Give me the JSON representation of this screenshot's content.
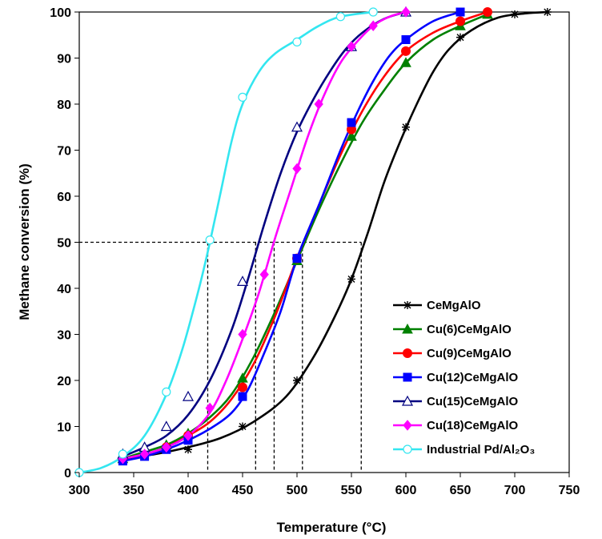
{
  "chart_data": {
    "type": "line",
    "xlabel": "Temperature (°C)",
    "ylabel": "Methane conversion (%)",
    "xlim": [
      300,
      750
    ],
    "ylim": [
      0,
      100
    ],
    "xticks": [
      300,
      350,
      400,
      450,
      500,
      550,
      600,
      650,
      700,
      750
    ],
    "yticks": [
      0,
      10,
      20,
      30,
      40,
      50,
      60,
      70,
      80,
      90,
      100
    ],
    "grid": false,
    "legend_position": "bottom-right",
    "reference_line": {
      "y": 50,
      "x_values": [
        418,
        462,
        479,
        505,
        559
      ],
      "style": "dashed"
    },
    "series": [
      {
        "name": "CeMgAlO",
        "color": "#000000",
        "marker": "star",
        "points": [
          [
            400,
            5
          ],
          [
            450,
            10
          ],
          [
            500,
            20
          ],
          [
            550,
            42
          ],
          [
            600,
            75
          ],
          [
            650,
            94.5
          ],
          [
            700,
            99.5
          ],
          [
            730,
            100
          ]
        ],
        "curve": [
          [
            340,
            3
          ],
          [
            370,
            4
          ],
          [
            400,
            5.5
          ],
          [
            430,
            7.5
          ],
          [
            460,
            11
          ],
          [
            490,
            16.5
          ],
          [
            515,
            25
          ],
          [
            535,
            34
          ],
          [
            550,
            42
          ],
          [
            565,
            52
          ],
          [
            580,
            63
          ],
          [
            595,
            72
          ],
          [
            610,
            80
          ],
          [
            625,
            87
          ],
          [
            640,
            92
          ],
          [
            660,
            96
          ],
          [
            685,
            98.8
          ],
          [
            710,
            99.7
          ],
          [
            730,
            100
          ]
        ]
      },
      {
        "name": "Cu(6)CeMgAlO",
        "color": "#008000",
        "marker": "triangle",
        "points": [
          [
            340,
            3
          ],
          [
            380,
            6
          ],
          [
            400,
            8.5
          ],
          [
            450,
            20.5
          ],
          [
            500,
            46
          ],
          [
            550,
            73
          ],
          [
            600,
            89
          ],
          [
            650,
            97
          ],
          [
            675,
            99.5
          ]
        ],
        "curve": [
          [
            340,
            3
          ],
          [
            360,
            4.5
          ],
          [
            380,
            6
          ],
          [
            400,
            8.5
          ],
          [
            420,
            12
          ],
          [
            440,
            17
          ],
          [
            460,
            25
          ],
          [
            480,
            35
          ],
          [
            500,
            46
          ],
          [
            520,
            57
          ],
          [
            540,
            67
          ],
          [
            560,
            76
          ],
          [
            580,
            83
          ],
          [
            600,
            89
          ],
          [
            625,
            94
          ],
          [
            650,
            97
          ],
          [
            675,
            99.5
          ]
        ]
      },
      {
        "name": "Cu(9)CeMgAlO",
        "color": "#ff0000",
        "marker": "circle",
        "points": [
          [
            340,
            3
          ],
          [
            380,
            5.5
          ],
          [
            400,
            8
          ],
          [
            450,
            18.5
          ],
          [
            500,
            46.5
          ],
          [
            550,
            74.5
          ],
          [
            600,
            91.5
          ],
          [
            650,
            98
          ],
          [
            675,
            100
          ]
        ],
        "curve": [
          [
            340,
            3
          ],
          [
            360,
            4
          ],
          [
            380,
            5.5
          ],
          [
            400,
            8
          ],
          [
            420,
            11
          ],
          [
            440,
            16
          ],
          [
            460,
            23.5
          ],
          [
            480,
            34
          ],
          [
            500,
            46.5
          ],
          [
            520,
            58
          ],
          [
            540,
            69
          ],
          [
            560,
            78.5
          ],
          [
            580,
            86
          ],
          [
            600,
            91.5
          ],
          [
            625,
            95.5
          ],
          [
            650,
            98
          ],
          [
            675,
            100
          ]
        ]
      },
      {
        "name": "Cu(12)CeMgAlO",
        "color": "#0000ff",
        "marker": "square",
        "points": [
          [
            340,
            2.5
          ],
          [
            360,
            3.5
          ],
          [
            380,
            5
          ],
          [
            400,
            7
          ],
          [
            450,
            16.5
          ],
          [
            500,
            46.5
          ],
          [
            550,
            76
          ],
          [
            600,
            94
          ],
          [
            650,
            100
          ]
        ],
        "curve": [
          [
            340,
            2.5
          ],
          [
            360,
            3.5
          ],
          [
            380,
            5
          ],
          [
            400,
            7
          ],
          [
            420,
            9.5
          ],
          [
            440,
            13
          ],
          [
            455,
            18
          ],
          [
            470,
            26
          ],
          [
            485,
            35
          ],
          [
            500,
            46.5
          ],
          [
            520,
            58
          ],
          [
            540,
            70
          ],
          [
            555,
            78
          ],
          [
            570,
            85
          ],
          [
            585,
            90.5
          ],
          [
            600,
            94
          ],
          [
            625,
            98
          ],
          [
            650,
            100
          ]
        ]
      },
      {
        "name": "Cu(15)CeMgAlO",
        "color": "#000080",
        "marker": "open-triangle",
        "points": [
          [
            340,
            4
          ],
          [
            360,
            5.5
          ],
          [
            380,
            10
          ],
          [
            400,
            16.5
          ],
          [
            450,
            41.5
          ],
          [
            500,
            75
          ],
          [
            550,
            92.5
          ],
          [
            600,
            100
          ]
        ],
        "curve": [
          [
            340,
            3.5
          ],
          [
            360,
            5.5
          ],
          [
            380,
            8
          ],
          [
            400,
            12.5
          ],
          [
            420,
            20
          ],
          [
            440,
            31
          ],
          [
            455,
            42
          ],
          [
            470,
            54
          ],
          [
            485,
            65
          ],
          [
            500,
            74
          ],
          [
            515,
            81
          ],
          [
            530,
            87
          ],
          [
            545,
            92
          ],
          [
            560,
            95.5
          ],
          [
            580,
            98.5
          ],
          [
            600,
            100
          ]
        ]
      },
      {
        "name": "Cu(18)CeMgAlO",
        "color": "#ff00ff",
        "marker": "diamond",
        "points": [
          [
            340,
            3
          ],
          [
            360,
            4
          ],
          [
            380,
            5.5
          ],
          [
            400,
            8
          ],
          [
            420,
            14
          ],
          [
            450,
            30
          ],
          [
            470,
            43
          ],
          [
            500,
            66
          ],
          [
            520,
            80
          ],
          [
            550,
            92.5
          ],
          [
            570,
            97
          ],
          [
            600,
            100
          ]
        ],
        "curve": [
          [
            340,
            3
          ],
          [
            360,
            4
          ],
          [
            380,
            5.5
          ],
          [
            400,
            8
          ],
          [
            420,
            13
          ],
          [
            435,
            20
          ],
          [
            450,
            29
          ],
          [
            465,
            39
          ],
          [
            480,
            51
          ],
          [
            495,
            62
          ],
          [
            510,
            73
          ],
          [
            525,
            82
          ],
          [
            540,
            89
          ],
          [
            555,
            93.5
          ],
          [
            570,
            97
          ],
          [
            585,
            99
          ],
          [
            600,
            100
          ]
        ]
      },
      {
        "name": "Industrial Pd/Al₂O₃",
        "color": "#33e6f0",
        "marker": "open-circle",
        "points": [
          [
            300,
            0
          ],
          [
            340,
            4
          ],
          [
            380,
            17.5
          ],
          [
            420,
            50.5
          ],
          [
            450,
            81.5
          ],
          [
            500,
            93.5
          ],
          [
            540,
            99
          ],
          [
            570,
            100
          ]
        ],
        "curve": [
          [
            300,
            0
          ],
          [
            320,
            1
          ],
          [
            340,
            3.5
          ],
          [
            360,
            8
          ],
          [
            380,
            17
          ],
          [
            395,
            27
          ],
          [
            410,
            40
          ],
          [
            420,
            50
          ],
          [
            430,
            61
          ],
          [
            440,
            72
          ],
          [
            450,
            80
          ],
          [
            465,
            87
          ],
          [
            480,
            91
          ],
          [
            500,
            94
          ],
          [
            520,
            97
          ],
          [
            540,
            99
          ],
          [
            570,
            100
          ]
        ]
      }
    ]
  }
}
